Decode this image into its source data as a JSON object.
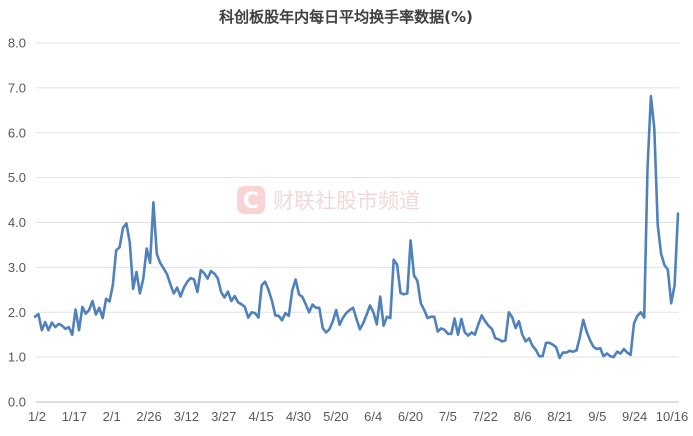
{
  "chart_data": {
    "type": "line",
    "title": "科创板股年内每日平均换手率数据(%)",
    "xlabel": "",
    "ylabel": "",
    "ylim": [
      0,
      8
    ],
    "yticks": [
      "0.0",
      "1.0",
      "2.0",
      "3.0",
      "4.0",
      "5.0",
      "6.0",
      "7.0",
      "8.0"
    ],
    "xtick_labels": [
      "1/2",
      "1/17",
      "2/1",
      "2/26",
      "3/12",
      "3/27",
      "4/15",
      "4/30",
      "5/20",
      "6/4",
      "6/20",
      "7/5",
      "7/22",
      "8/6",
      "8/21",
      "9/5",
      "9/24",
      "10/16"
    ],
    "grid": true,
    "legend": "none",
    "series_color": "#4f81bd",
    "series": [
      {
        "values": [
          1.9,
          1.96,
          1.6,
          1.78,
          1.6,
          1.77,
          1.67,
          1.74,
          1.7,
          1.63,
          1.67,
          1.5,
          2.06,
          1.6,
          2.12,
          1.97,
          2.05,
          2.25,
          1.95,
          2.1,
          1.87,
          2.3,
          2.24,
          2.6,
          3.38,
          3.45,
          3.88,
          3.98,
          3.55,
          2.52,
          2.9,
          2.42,
          2.75,
          3.42,
          3.1,
          4.45,
          3.3,
          3.1,
          2.98,
          2.85,
          2.62,
          2.42,
          2.55,
          2.35,
          2.55,
          2.68,
          2.76,
          2.73,
          2.45,
          2.94,
          2.87,
          2.75,
          2.92,
          2.86,
          2.76,
          2.45,
          2.33,
          2.46,
          2.25,
          2.36,
          2.22,
          2.18,
          2.12,
          1.88,
          2.0,
          1.98,
          1.88,
          2.6,
          2.68,
          2.5,
          2.26,
          1.93,
          1.92,
          1.82,
          1.98,
          1.92,
          2.48,
          2.73,
          2.4,
          2.34,
          2.18,
          2.0,
          2.17,
          2.1,
          2.1,
          1.65,
          1.55,
          1.62,
          1.8,
          2.05,
          1.72,
          1.88,
          1.98,
          2.05,
          2.1,
          1.85,
          1.62,
          1.76,
          1.95,
          2.15,
          2.0,
          1.73,
          2.35,
          1.7,
          1.9,
          1.87,
          3.17,
          3.06,
          2.43,
          2.4,
          2.42,
          3.6,
          2.82,
          2.7,
          2.2,
          2.05,
          1.87,
          1.9,
          1.9,
          1.57,
          1.64,
          1.61,
          1.52,
          1.52,
          1.86,
          1.5,
          1.85,
          1.55,
          1.48,
          1.55,
          1.5,
          1.73,
          1.93,
          1.8,
          1.7,
          1.63,
          1.42,
          1.4,
          1.35,
          1.37,
          2.0,
          1.89,
          1.65,
          1.8,
          1.5,
          1.35,
          1.42,
          1.25,
          1.16,
          1.02,
          1.02,
          1.32,
          1.32,
          1.28,
          1.22,
          0.98,
          1.1,
          1.1,
          1.14,
          1.12,
          1.15,
          1.45,
          1.83,
          1.57,
          1.38,
          1.23,
          1.18,
          1.2,
          1.02,
          1.08,
          1.02,
          1.0,
          1.12,
          1.08,
          1.18,
          1.1,
          1.05,
          1.75,
          1.92,
          2.0,
          1.88,
          5.2,
          6.82,
          6.1,
          3.95,
          3.3,
          3.05,
          2.95,
          2.2,
          2.6,
          4.2
        ]
      }
    ]
  },
  "watermark": {
    "text": "财联社股市频道",
    "logo_letter": "C",
    "color": "#ef9a9a"
  }
}
